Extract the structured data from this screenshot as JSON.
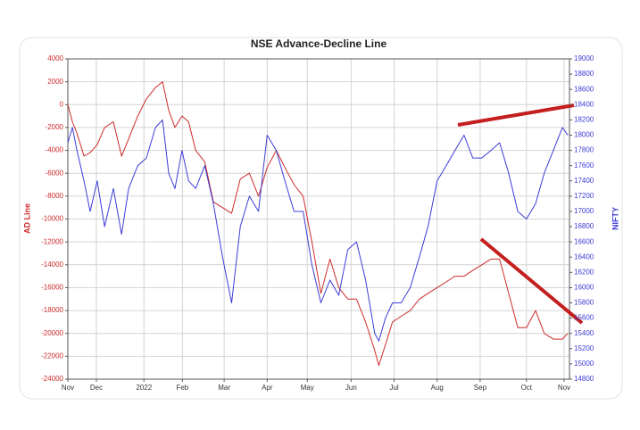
{
  "chart_data": {
    "type": "line",
    "title": "NSE Advance-Decline Line",
    "ylabel": "AD Line",
    "y2label": "NIFTY",
    "grid": true,
    "x": [
      0,
      0.11,
      0.22,
      0.39,
      0.54,
      0.71,
      0.89,
      1.1,
      1.3,
      1.47,
      1.69,
      1.9,
      2.12,
      2.29,
      2.44,
      2.59,
      2.76,
      2.92,
      3.09,
      3.31,
      3.52,
      3.74,
      3.96,
      4.17,
      4.39,
      4.61,
      4.82,
      5.04,
      5.25,
      5.47,
      5.69,
      5.9,
      6.12,
      6.34,
      6.55,
      6.77,
      6.98,
      7.2,
      7.42,
      7.52,
      7.68,
      7.85,
      8.06,
      8.28,
      8.5,
      8.71,
      8.93,
      9.15,
      9.36,
      9.58,
      9.79,
      10.01,
      10.23,
      10.44,
      10.66,
      10.88,
      11.09,
      11.31,
      11.52,
      11.74,
      11.96,
      12.09
    ],
    "xlim": [
      0,
      12.13
    ],
    "xticks": [
      {
        "value": 0,
        "label": "Nov"
      },
      {
        "value": 0.69,
        "label": "Dec"
      },
      {
        "value": 1.84,
        "label": "2022"
      },
      {
        "value": 2.77,
        "label": "Feb"
      },
      {
        "value": 3.78,
        "label": "Mar"
      },
      {
        "value": 4.82,
        "label": "Apr"
      },
      {
        "value": 5.79,
        "label": "May"
      },
      {
        "value": 6.85,
        "label": "Jun"
      },
      {
        "value": 7.89,
        "label": "Jul"
      },
      {
        "value": 8.93,
        "label": "Aug"
      },
      {
        "value": 9.97,
        "label": "Sep"
      },
      {
        "value": 11.09,
        "label": "Oct"
      },
      {
        "value": 12,
        "label": "Nov"
      }
    ],
    "ylim": [
      -24000,
      4000
    ],
    "yticks": [
      -24000,
      -22000,
      -20000,
      -18000,
      -16000,
      -14000,
      -12000,
      -10000,
      -8000,
      -6000,
      -4000,
      -2000,
      0,
      2000,
      4000
    ],
    "y2lim": [
      14800,
      19000
    ],
    "y2ticks": [
      14800,
      15000,
      15200,
      15400,
      15600,
      15800,
      16000,
      16200,
      16400,
      16600,
      16800,
      17000,
      17200,
      17400,
      17600,
      17800,
      18000,
      18200,
      18400,
      18600,
      18800,
      19000
    ],
    "series": [
      {
        "name": "AD Line",
        "color": "#cc2b2b",
        "axis": "y",
        "values": [
          0,
          -1500,
          -2500,
          -4500,
          -4200,
          -3500,
          -2000,
          -1500,
          -4500,
          -3000,
          -1000,
          500,
          1500,
          2000,
          -500,
          -2000,
          -1000,
          -1500,
          -4000,
          -5000,
          -8500,
          -9000,
          -9500,
          -6500,
          -6000,
          -8000,
          -5500,
          -4000,
          -5500,
          -7000,
          -8000,
          -12000,
          -16500,
          -13500,
          -16000,
          -17000,
          -17000,
          -19000,
          -21500,
          -22800,
          -21000,
          -19000,
          -18500,
          -18000,
          -17000,
          -16500,
          -16000,
          -15500,
          -15000,
          -15000,
          -14500,
          -14000,
          -13500,
          -13500,
          -16500,
          -19500,
          -19500,
          -18000,
          -20000,
          -20500,
          -20500,
          -20000
        ]
      },
      {
        "name": "NIFTY",
        "color": "#3b3bd6",
        "axis": "y2",
        "values": [
          17900,
          18100,
          17800,
          17400,
          17000,
          17400,
          16800,
          17300,
          16700,
          17300,
          17600,
          17700,
          18100,
          18200,
          17500,
          17300,
          17800,
          17400,
          17300,
          17600,
          17100,
          16400,
          15800,
          16800,
          17200,
          17000,
          18000,
          17800,
          17400,
          17000,
          17000,
          16300,
          15800,
          16100,
          15900,
          16500,
          16600,
          16100,
          15400,
          15300,
          15600,
          15800,
          15800,
          16000,
          16400,
          16800,
          17400,
          17600,
          17800,
          18000,
          17700,
          17700,
          17800,
          17900,
          17500,
          17000,
          16900,
          17100,
          17500,
          17800,
          18100,
          18000
        ]
      }
    ]
  }
}
